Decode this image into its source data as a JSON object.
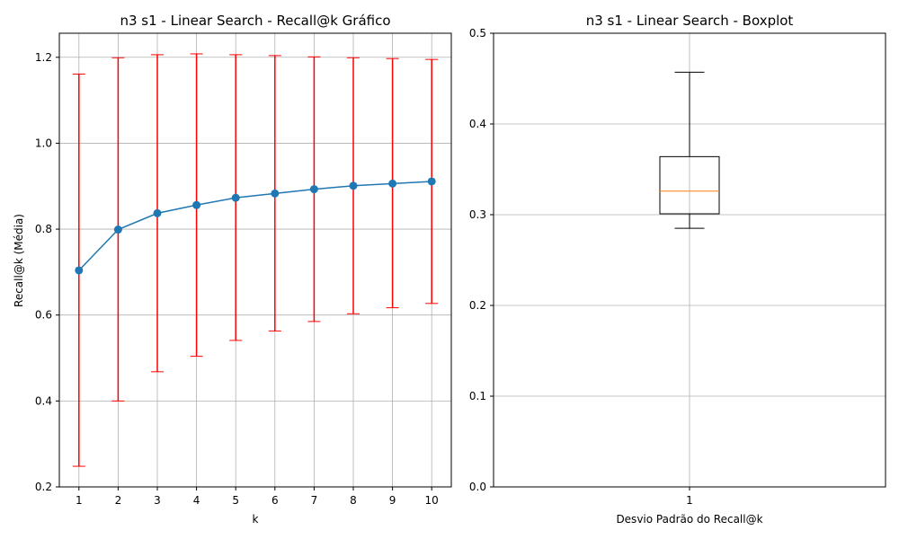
{
  "chart_data": [
    {
      "type": "line",
      "title": "n3 s1 - Linear Search - Recall@k Gráfico",
      "xlabel": "k",
      "ylabel": "Recall@k (Média)",
      "x": [
        1,
        2,
        3,
        4,
        5,
        6,
        7,
        8,
        9,
        10
      ],
      "xlim": [
        0.5,
        10.5
      ],
      "ylim": [
        0.2,
        1.256
      ],
      "yticks": [
        0.2,
        0.4,
        0.6,
        0.8,
        1.0,
        1.2
      ],
      "ytick_labels": [
        "0.2",
        "0.4",
        "0.6",
        "0.8",
        "1.0",
        "1.2"
      ],
      "xtick_labels": [
        "1",
        "2",
        "3",
        "4",
        "5",
        "6",
        "7",
        "8",
        "9",
        "10"
      ],
      "grid": true,
      "series": [
        {
          "name": "Recall@k",
          "values": [
            0.704,
            0.799,
            0.837,
            0.856,
            0.873,
            0.883,
            0.893,
            0.901,
            0.906,
            0.911
          ],
          "error_lower": [
            0.248,
            0.4,
            0.468,
            0.504,
            0.541,
            0.563,
            0.585,
            0.603,
            0.617,
            0.627
          ],
          "error_upper": [
            1.161,
            1.199,
            1.206,
            1.208,
            1.206,
            1.204,
            1.201,
            1.199,
            1.197,
            1.195
          ],
          "color": "#1f77b4",
          "error_color": "#ff0000"
        }
      ]
    },
    {
      "type": "boxplot",
      "title": "n3 s1 - Linear Search - Boxplot",
      "xlabel": "Desvio Padrão do Recall@k",
      "ylabel": "",
      "categories": [
        "1"
      ],
      "ylim": [
        0.0,
        0.5
      ],
      "yticks": [
        0.0,
        0.1,
        0.2,
        0.3,
        0.4,
        0.5
      ],
      "ytick_labels": [
        "0.0",
        "0.1",
        "0.2",
        "0.3",
        "0.4",
        "0.5"
      ],
      "grid": true,
      "box": {
        "whisker_low": 0.285,
        "q1": 0.301,
        "median": 0.326,
        "q3": 0.364,
        "whisker_high": 0.457,
        "median_color": "#ff7f0e"
      }
    }
  ]
}
